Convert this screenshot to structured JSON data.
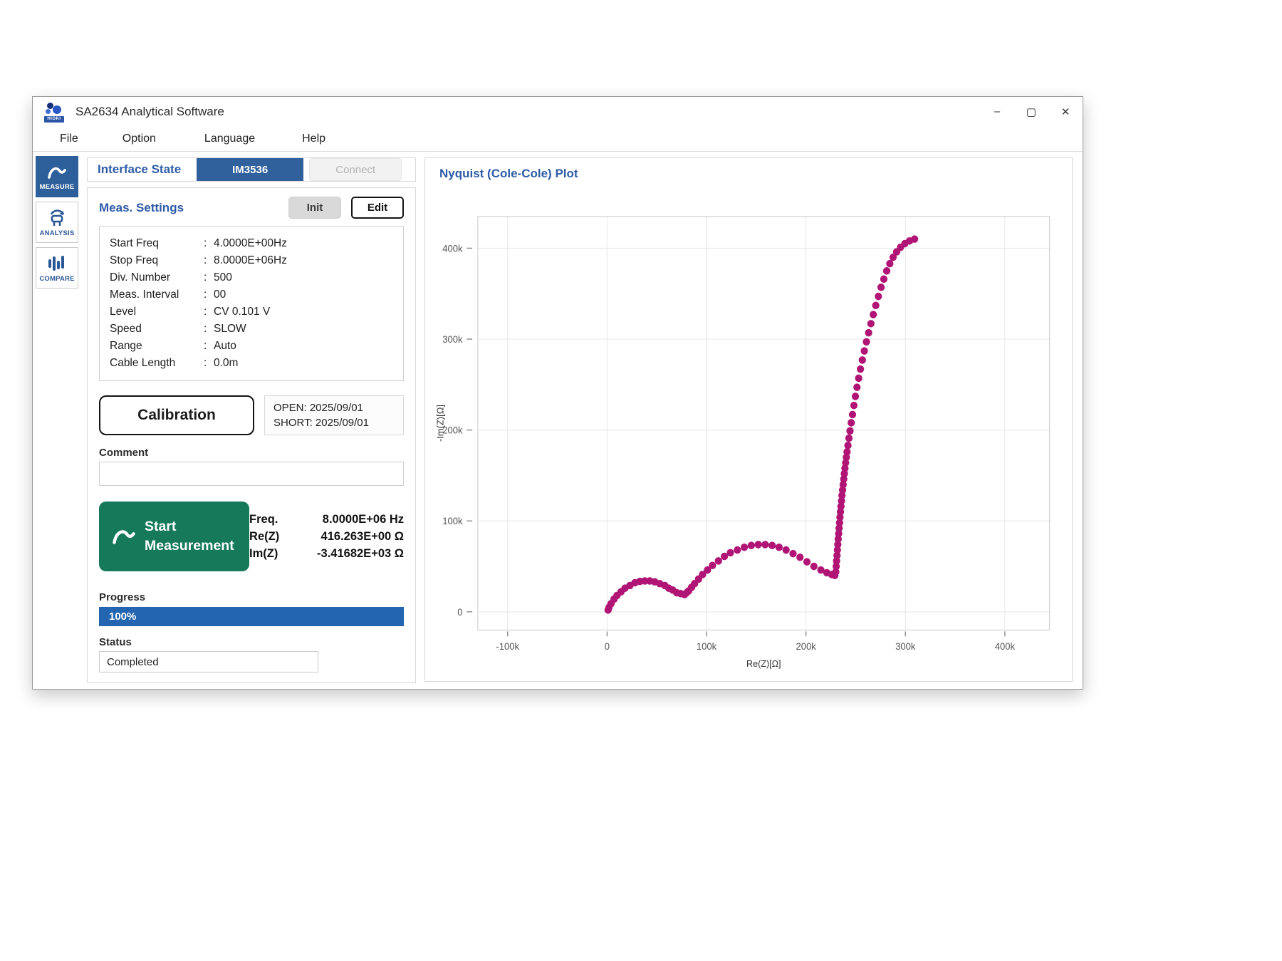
{
  "window": {
    "title": "SA2634 Analytical Software",
    "logo_text": "HIOKI",
    "controls": {
      "minimize": "–",
      "maximize": "▢",
      "close": "✕"
    }
  },
  "menu": {
    "items": [
      "File",
      "Option",
      "Language",
      "Help"
    ]
  },
  "sidebar": {
    "items": [
      {
        "label": "MEASURE",
        "active": true
      },
      {
        "label": "ANALYSIS",
        "active": false
      },
      {
        "label": "COMPARE",
        "active": false
      }
    ]
  },
  "interface_state": {
    "label": "Interface State",
    "device_button": "IM3536",
    "connect_button": "Connect"
  },
  "meas_settings": {
    "title": "Meas. Settings",
    "init_button": "Init",
    "edit_button": "Edit",
    "colon": ":",
    "rows": [
      {
        "label": "Start Freq",
        "value": "4.0000E+00Hz"
      },
      {
        "label": "Stop Freq",
        "value": "8.0000E+06Hz"
      },
      {
        "label": "Div. Number",
        "value": "500"
      },
      {
        "label": "Meas. Interval",
        "value": "00"
      },
      {
        "label": "Level",
        "value": "CV 0.101 V"
      },
      {
        "label": "Speed",
        "value": "SLOW"
      },
      {
        "label": "Range",
        "value": "Auto"
      },
      {
        "label": "Cable Length",
        "value": "0.0m"
      }
    ]
  },
  "calibration": {
    "button": "Calibration",
    "open_date": "OPEN: 2025/09/01",
    "short_date": "SHORT: 2025/09/01"
  },
  "comment": {
    "label": "Comment",
    "value": ""
  },
  "measurement": {
    "start_line1": "Start",
    "start_line2": "Measurement",
    "readings": [
      {
        "label": "Freq.",
        "value": "8.0000E+06 Hz"
      },
      {
        "label": "Re(Z)",
        "value": "416.263E+00 Ω"
      },
      {
        "label": "Im(Z)",
        "value": "-3.41682E+03 Ω"
      }
    ]
  },
  "progress": {
    "label": "Progress",
    "percent": 100,
    "percent_text": "100%"
  },
  "status": {
    "label": "Status",
    "value": "Completed"
  },
  "plot": {
    "title": "Nyquist (Cole-Cole) Plot"
  },
  "chart_data": {
    "type": "scatter",
    "title": "Nyquist (Cole-Cole) Plot",
    "xlabel": "Re(Z)[Ω]",
    "ylabel": "-Im(Z)[Ω]",
    "units": "kΩ",
    "xlim": [
      -130,
      445
    ],
    "ylim": [
      -20,
      435
    ],
    "x_tick_values": [
      -100,
      0,
      100,
      200,
      300,
      400
    ],
    "x_tick_labels": [
      "-100k",
      "0",
      "100k",
      "200k",
      "300k",
      "400k"
    ],
    "y_tick_values": [
      0,
      100,
      200,
      300,
      400
    ],
    "y_tick_labels": [
      "0",
      "100k",
      "200k",
      "300k",
      "400k"
    ],
    "grid": true,
    "legend": "none",
    "marker_color": "#b01474",
    "description": "Impedance sweep 4 Hz - 8 MHz: two depressed semicircle arcs (0-80k and 80k-230k Ohm, apexes ~34k and ~74k) followed by a steep capacitive tail rising from ~230k Ohm up to ~410k on the -Im axis",
    "series": [
      {
        "name": "Z sweep",
        "points": [
          [
            1,
            2
          ],
          [
            2,
            5
          ],
          [
            4,
            9
          ],
          [
            7,
            14
          ],
          [
            10,
            18
          ],
          [
            14,
            22
          ],
          [
            18,
            26
          ],
          [
            23,
            29
          ],
          [
            28,
            32
          ],
          [
            33,
            33.5
          ],
          [
            38,
            34
          ],
          [
            43,
            34
          ],
          [
            48,
            33
          ],
          [
            53,
            31
          ],
          [
            58,
            29
          ],
          [
            62,
            26
          ],
          [
            66,
            24
          ],
          [
            70,
            21
          ],
          [
            74,
            20
          ],
          [
            78,
            19
          ],
          [
            80,
            21
          ],
          [
            82,
            23
          ],
          [
            85,
            27
          ],
          [
            88,
            31
          ],
          [
            92,
            36
          ],
          [
            96,
            41
          ],
          [
            101,
            46
          ],
          [
            106,
            51
          ],
          [
            112,
            56
          ],
          [
            118,
            61
          ],
          [
            124,
            65
          ],
          [
            131,
            68
          ],
          [
            138,
            71
          ],
          [
            145,
            73
          ],
          [
            152,
            74
          ],
          [
            159,
            74
          ],
          [
            166,
            73
          ],
          [
            173,
            71
          ],
          [
            180,
            68
          ],
          [
            187,
            64
          ],
          [
            194,
            60
          ],
          [
            201,
            55
          ],
          [
            208,
            50
          ],
          [
            215,
            46
          ],
          [
            221,
            43
          ],
          [
            226,
            41
          ],
          [
            229,
            40
          ],
          [
            230,
            44
          ],
          [
            230.4,
            50
          ],
          [
            230.8,
            56
          ],
          [
            231.2,
            62
          ],
          [
            231.6,
            68
          ],
          [
            232,
            74
          ],
          [
            232.4,
            80
          ],
          [
            232.9,
            86
          ],
          [
            233.3,
            92
          ],
          [
            233.8,
            98
          ],
          [
            234.2,
            104
          ],
          [
            234.7,
            110
          ],
          [
            235.2,
            116
          ],
          [
            235.7,
            122
          ],
          [
            236.2,
            128
          ],
          [
            236.8,
            134
          ],
          [
            237.4,
            140
          ],
          [
            238,
            146
          ],
          [
            238.6,
            152
          ],
          [
            239.2,
            158
          ],
          [
            239.9,
            164
          ],
          [
            240.6,
            170
          ],
          [
            241.3,
            176
          ],
          [
            242.2,
            183
          ],
          [
            243.2,
            191
          ],
          [
            244.3,
            199
          ],
          [
            245.5,
            208
          ],
          [
            246.8,
            217
          ],
          [
            248.2,
            227
          ],
          [
            249.7,
            237
          ],
          [
            251.3,
            247
          ],
          [
            253,
            257
          ],
          [
            254.8,
            267
          ],
          [
            256.7,
            277
          ],
          [
            258.7,
            287
          ],
          [
            260.8,
            297
          ],
          [
            263,
            307
          ],
          [
            265.3,
            317
          ],
          [
            267.7,
            327
          ],
          [
            270.2,
            337
          ],
          [
            272.8,
            347
          ],
          [
            275.5,
            357
          ],
          [
            278.3,
            366
          ],
          [
            281.2,
            375
          ],
          [
            284.3,
            383
          ],
          [
            287.6,
            390
          ],
          [
            291.2,
            396
          ],
          [
            295.1,
            401
          ],
          [
            299.4,
            405
          ],
          [
            304.1,
            408
          ],
          [
            309.2,
            410
          ]
        ]
      }
    ]
  }
}
